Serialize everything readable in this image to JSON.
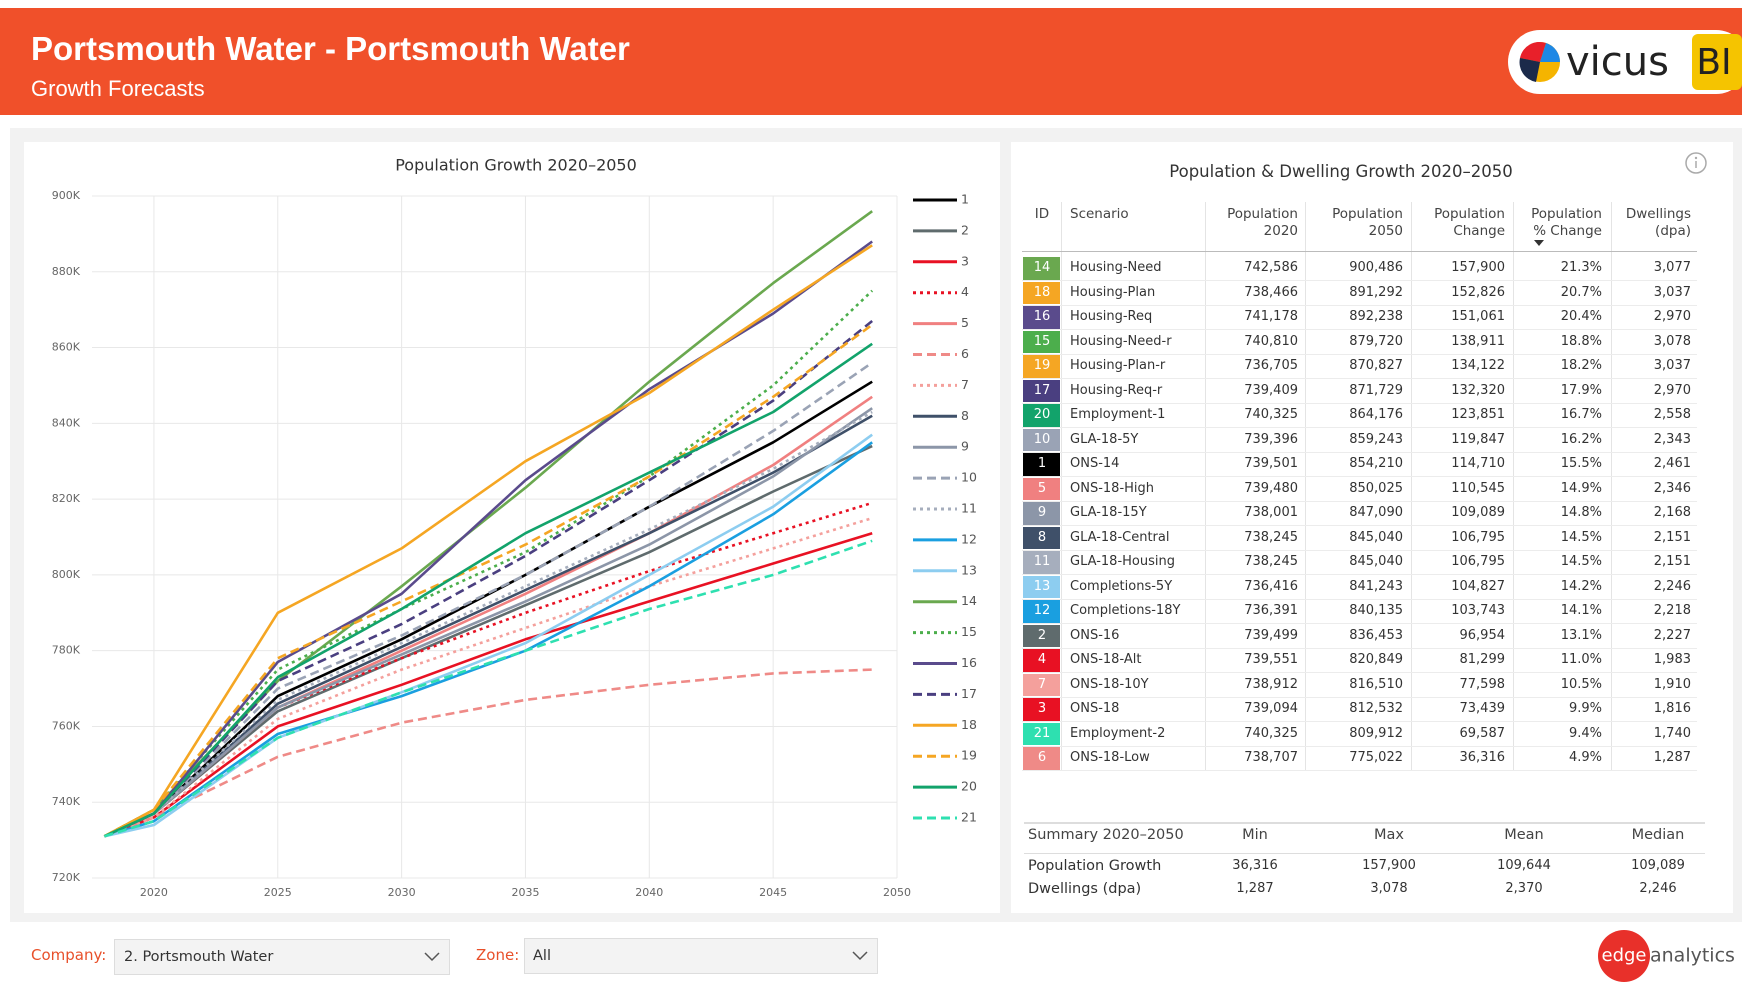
{
  "header": {
    "title": "Portsmouth Water - Portsmouth Water",
    "subtitle": "Growth Forecasts",
    "logo": {
      "word": "vicus",
      "badge": "BI"
    }
  },
  "chart_data": {
    "type": "line",
    "title": "Population Growth 2020–2050",
    "x": [
      2018,
      2020,
      2025,
      2030,
      2035,
      2040,
      2045,
      2049
    ],
    "xlim": [
      2017.5,
      2050
    ],
    "xticks": [
      2020,
      2025,
      2030,
      2035,
      2040,
      2045,
      2050
    ],
    "ylim": [
      720000,
      900000
    ],
    "yticks": [
      {
        "value": 720000,
        "label": "720K"
      },
      {
        "value": 740000,
        "label": "740K"
      },
      {
        "value": 760000,
        "label": "760K"
      },
      {
        "value": 780000,
        "label": "780K"
      },
      {
        "value": 800000,
        "label": "800K"
      },
      {
        "value": 820000,
        "label": "820K"
      },
      {
        "value": 840000,
        "label": "840K"
      },
      {
        "value": 860000,
        "label": "860K"
      },
      {
        "value": 880000,
        "label": "880K"
      },
      {
        "value": 900000,
        "label": "900K"
      }
    ],
    "grid": true,
    "legend": "right",
    "series": [
      {
        "name": "1",
        "color": "#000000",
        "dash": "solid",
        "values": [
          731000,
          737000,
          768000,
          783000,
          800000,
          818000,
          835000,
          851000
        ]
      },
      {
        "name": "2",
        "color": "#5f6b6d",
        "dash": "solid",
        "values": [
          731000,
          737000,
          764000,
          778000,
          792000,
          806000,
          822000,
          834000
        ]
      },
      {
        "name": "3",
        "color": "#e81123",
        "dash": "solid",
        "values": [
          731000,
          736000,
          760000,
          771000,
          783000,
          793000,
          803000,
          811000
        ]
      },
      {
        "name": "4",
        "color": "#e81123",
        "dash": "dotted",
        "values": [
          731000,
          737000,
          765000,
          778000,
          790000,
          801000,
          811000,
          819000
        ]
      },
      {
        "name": "5",
        "color": "#f08080",
        "dash": "solid",
        "values": [
          731000,
          737000,
          765000,
          780000,
          795000,
          811000,
          829000,
          847000
        ]
      },
      {
        "name": "6",
        "color": "#ef8a87",
        "dash": "dashed",
        "values": [
          731000,
          736000,
          752000,
          761000,
          767000,
          771000,
          774000,
          775000
        ]
      },
      {
        "name": "7",
        "color": "#f4a09c",
        "dash": "dotted",
        "values": [
          731000,
          736000,
          762000,
          775000,
          786000,
          797000,
          807000,
          815000
        ]
      },
      {
        "name": "8",
        "color": "#3f5069",
        "dash": "solid",
        "values": [
          731000,
          737000,
          766000,
          781000,
          796000,
          811000,
          827000,
          842000
        ]
      },
      {
        "name": "9",
        "color": "#8c96a8",
        "dash": "solid",
        "values": [
          731000,
          737000,
          765000,
          779000,
          793000,
          808000,
          826000,
          844000
        ]
      },
      {
        "name": "10",
        "color": "#9aa3b5",
        "dash": "dashed",
        "values": [
          731000,
          737000,
          770000,
          784000,
          800000,
          818000,
          838000,
          856000
        ]
      },
      {
        "name": "11",
        "color": "#a6aebd",
        "dash": "dotted",
        "values": [
          731000,
          737000,
          767000,
          782000,
          797000,
          812000,
          828000,
          843000
        ]
      },
      {
        "name": "12",
        "color": "#1a9fe0",
        "dash": "solid",
        "values": [
          731000,
          735000,
          758000,
          768000,
          780000,
          797000,
          816000,
          835000
        ]
      },
      {
        "name": "13",
        "color": "#8dcdf0",
        "dash": "solid",
        "values": [
          731000,
          734000,
          757000,
          769000,
          782000,
          800000,
          818000,
          837000
        ]
      },
      {
        "name": "14",
        "color": "#6aa84f",
        "dash": "solid",
        "values": [
          731000,
          738000,
          772000,
          797000,
          823000,
          851000,
          877000,
          896000
        ]
      },
      {
        "name": "15",
        "color": "#4cae4c",
        "dash": "dotted",
        "values": [
          731000,
          738000,
          775000,
          791000,
          806000,
          826000,
          850000,
          875000
        ]
      },
      {
        "name": "16",
        "color": "#5a4b8c",
        "dash": "solid",
        "values": [
          731000,
          737000,
          777000,
          795000,
          825000,
          849000,
          869000,
          888000
        ]
      },
      {
        "name": "17",
        "color": "#4a3f80",
        "dash": "dashed",
        "values": [
          731000,
          737000,
          772000,
          787000,
          805000,
          825000,
          846000,
          867000
        ]
      },
      {
        "name": "18",
        "color": "#f5a623",
        "dash": "solid",
        "values": [
          731000,
          738000,
          790000,
          807000,
          830000,
          848000,
          870000,
          887000
        ]
      },
      {
        "name": "19",
        "color": "#f5a623",
        "dash": "dashed",
        "values": [
          731000,
          738000,
          778000,
          793000,
          808000,
          826000,
          847000,
          866000
        ]
      },
      {
        "name": "20",
        "color": "#12a36b",
        "dash": "solid",
        "values": [
          731000,
          737000,
          773000,
          791000,
          811000,
          827000,
          843000,
          861000
        ]
      },
      {
        "name": "21",
        "color": "#2ee0b0",
        "dash": "dashed",
        "values": [
          731000,
          735000,
          757000,
          769000,
          780000,
          791000,
          800000,
          809000
        ]
      }
    ]
  },
  "table": {
    "title": "Population & Dwelling Growth 2020–2050",
    "columns": [
      [
        "ID"
      ],
      [
        "Scenario"
      ],
      [
        "Population",
        "2020"
      ],
      [
        "Population",
        "2050"
      ],
      [
        "Population",
        "Change"
      ],
      [
        "Population",
        "% Change"
      ],
      [
        "Dwellings",
        "(dpa)"
      ]
    ],
    "rows": [
      [
        "14",
        "Housing-Need",
        "742,586",
        "900,486",
        "157,900",
        "21.3%",
        "3,077"
      ],
      [
        "18",
        "Housing-Plan",
        "738,466",
        "891,292",
        "152,826",
        "20.7%",
        "3,037"
      ],
      [
        "16",
        "Housing-Req",
        "741,178",
        "892,238",
        "151,061",
        "20.4%",
        "2,970"
      ],
      [
        "15",
        "Housing-Need-r",
        "740,810",
        "879,720",
        "138,911",
        "18.8%",
        "3,078"
      ],
      [
        "19",
        "Housing-Plan-r",
        "736,705",
        "870,827",
        "134,122",
        "18.2%",
        "3,037"
      ],
      [
        "17",
        "Housing-Req-r",
        "739,409",
        "871,729",
        "132,320",
        "17.9%",
        "2,970"
      ],
      [
        "20",
        "Employment-1",
        "740,325",
        "864,176",
        "123,851",
        "16.7%",
        "2,558"
      ],
      [
        "10",
        "GLA-18-5Y",
        "739,396",
        "859,243",
        "119,847",
        "16.2%",
        "2,343"
      ],
      [
        "1",
        "ONS-14",
        "739,501",
        "854,210",
        "114,710",
        "15.5%",
        "2,461"
      ],
      [
        "5",
        "ONS-18-High",
        "739,480",
        "850,025",
        "110,545",
        "14.9%",
        "2,346"
      ],
      [
        "9",
        "GLA-18-15Y",
        "738,001",
        "847,090",
        "109,089",
        "14.8%",
        "2,168"
      ],
      [
        "8",
        "GLA-18-Central",
        "738,245",
        "845,040",
        "106,795",
        "14.5%",
        "2,151"
      ],
      [
        "11",
        "GLA-18-Housing",
        "738,245",
        "845,040",
        "106,795",
        "14.5%",
        "2,151"
      ],
      [
        "13",
        "Completions-5Y",
        "736,416",
        "841,243",
        "104,827",
        "14.2%",
        "2,246"
      ],
      [
        "12",
        "Completions-18Y",
        "736,391",
        "840,135",
        "103,743",
        "14.1%",
        "2,218"
      ],
      [
        "2",
        "ONS-16",
        "739,499",
        "836,453",
        "96,954",
        "13.1%",
        "2,227"
      ],
      [
        "4",
        "ONS-18-Alt",
        "739,551",
        "820,849",
        "81,299",
        "11.0%",
        "1,983"
      ],
      [
        "7",
        "ONS-18-10Y",
        "738,912",
        "816,510",
        "77,598",
        "10.5%",
        "1,910"
      ],
      [
        "3",
        "ONS-18",
        "739,094",
        "812,532",
        "73,439",
        "9.9%",
        "1,816"
      ],
      [
        "21",
        "Employment-2",
        "740,325",
        "809,912",
        "69,587",
        "9.4%",
        "1,740"
      ],
      [
        "6",
        "ONS-18-Low",
        "738,707",
        "775,022",
        "36,316",
        "4.9%",
        "1,287"
      ]
    ]
  },
  "summary": {
    "columns": [
      "Summary 2020–2050",
      "Min",
      "Max",
      "Mean",
      "Median"
    ],
    "rows": [
      [
        "Population Growth",
        "36,316",
        "157,900",
        "109,644",
        "109,089"
      ],
      [
        "Dwellings (dpa)",
        "1,287",
        "3,078",
        "2,370",
        "2,246"
      ]
    ]
  },
  "filters": {
    "company": {
      "label": "Company:",
      "value": "2. Portsmouth Water"
    },
    "zone": {
      "label": "Zone:",
      "value": "All"
    }
  },
  "footer": {
    "logo": {
      "word": "edge",
      "rest": "analytics"
    }
  }
}
